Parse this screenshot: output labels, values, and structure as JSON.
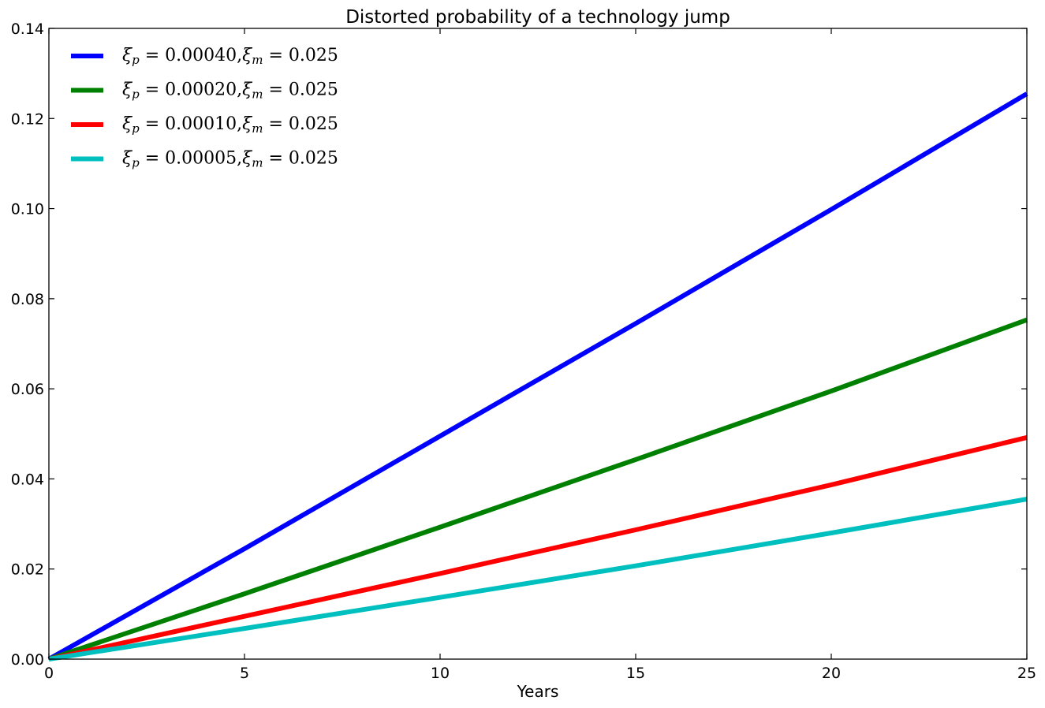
{
  "chart_data": {
    "type": "line",
    "title": "Distorted probability of a technology jump",
    "xlabel": "Years",
    "ylabel": "",
    "xlim": [
      0,
      25
    ],
    "ylim": [
      0,
      0.14
    ],
    "x_ticks": [
      0,
      5,
      10,
      15,
      20,
      25
    ],
    "x_tick_labels": [
      "0",
      "5",
      "10",
      "15",
      "20",
      "25"
    ],
    "y_ticks": [
      0,
      0.02,
      0.04,
      0.06,
      0.08,
      0.1,
      0.12,
      0.14
    ],
    "y_tick_labels": [
      "0.00",
      "0.02",
      "0.04",
      "0.06",
      "0.08",
      "0.10",
      "0.12",
      "0.14"
    ],
    "grid": false,
    "legend_position": "upper-left",
    "series": [
      {
        "name": "ξp = 0.00040,ξm = 0.025",
        "name_parts": {
          "sym1": "ξ",
          "sub1": "p",
          "val1": " = 0.00040,",
          "sym2": "ξ",
          "sub2": "m",
          "val2": " = 0.025"
        },
        "color": "#0000ff",
        "x": [
          0,
          5,
          10,
          15,
          20,
          25
        ],
        "y": [
          0.0,
          0.0245,
          0.0495,
          0.0745,
          0.0998,
          0.1255
        ]
      },
      {
        "name": "ξp = 0.00020,ξm = 0.025",
        "name_parts": {
          "sym1": "ξ",
          "sub1": "p",
          "val1": " = 0.00020,",
          "sym2": "ξ",
          "sub2": "m",
          "val2": " = 0.025"
        },
        "color": "#008000",
        "x": [
          0,
          5,
          10,
          15,
          20,
          25
        ],
        "y": [
          0.0,
          0.0145,
          0.0293,
          0.0443,
          0.0595,
          0.0753
        ]
      },
      {
        "name": "ξp = 0.00010,ξm = 0.025",
        "name_parts": {
          "sym1": "ξ",
          "sub1": "p",
          "val1": " = 0.00010,",
          "sym2": "ξ",
          "sub2": "m",
          "val2": " = 0.025"
        },
        "color": "#ff0000",
        "x": [
          0,
          5,
          10,
          15,
          20,
          25
        ],
        "y": [
          0.0,
          0.0095,
          0.019,
          0.0287,
          0.0387,
          0.0492
        ]
      },
      {
        "name": "ξp = 0.00005,ξm = 0.025",
        "name_parts": {
          "sym1": "ξ",
          "sub1": "p",
          "val1": " = 0.00005,",
          "sym2": "ξ",
          "sub2": "m",
          "val2": " = 0.025"
        },
        "color": "#00bfbf",
        "x": [
          0,
          5,
          10,
          15,
          20,
          25
        ],
        "y": [
          0.0,
          0.0068,
          0.0137,
          0.0207,
          0.028,
          0.0355
        ]
      }
    ]
  }
}
